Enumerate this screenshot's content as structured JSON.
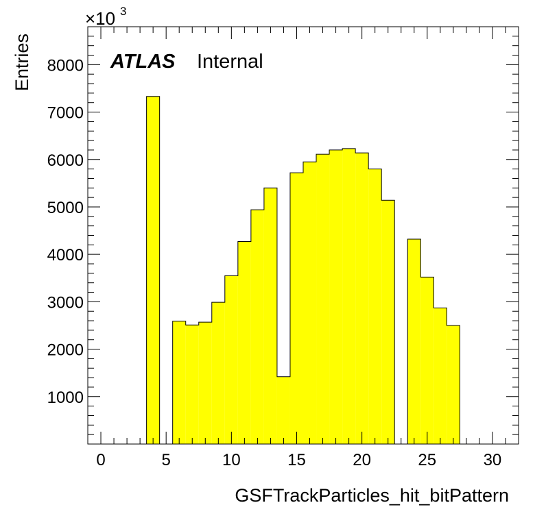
{
  "chart_data": {
    "type": "bar",
    "subtype": "histogram",
    "xlabel": "GSFTrackParticles_hit_bitPattern",
    "ylabel": "Entries",
    "y_multiplier_label": "×10",
    "y_multiplier_exponent": "3",
    "xlim": [
      -1,
      32
    ],
    "ylim": [
      0,
      8800
    ],
    "bin_width": 1,
    "x_ticks": [
      0,
      5,
      10,
      15,
      20,
      25,
      30
    ],
    "x_tick_labels": [
      "0",
      "5",
      "10",
      "15",
      "20",
      "25",
      "30"
    ],
    "y_ticks": [
      1000,
      2000,
      3000,
      4000,
      5000,
      6000,
      7000,
      8000
    ],
    "y_tick_labels": [
      "1000",
      "2000",
      "3000",
      "4000",
      "5000",
      "6000",
      "7000",
      "8000"
    ],
    "bin_low_edges": [
      -0.5,
      0.5,
      1.5,
      2.5,
      3.5,
      4.5,
      5.5,
      6.5,
      7.5,
      8.5,
      9.5,
      10.5,
      11.5,
      12.5,
      13.5,
      14.5,
      15.5,
      16.5,
      17.5,
      18.5,
      19.5,
      20.5,
      21.5,
      22.5,
      23.5,
      24.5,
      25.5,
      26.5,
      27.5,
      28.5,
      29.5,
      30.5
    ],
    "values": [
      0,
      0,
      0,
      0,
      7330,
      0,
      2590,
      2510,
      2570,
      2990,
      3550,
      4270,
      4940,
      5400,
      1420,
      5720,
      5950,
      6110,
      6200,
      6230,
      6140,
      5800,
      5140,
      0,
      4320,
      3520,
      2870,
      2500,
      0,
      0,
      0,
      0
    ],
    "fill_color": "#ffff00",
    "line_color": "#000000",
    "grid": false,
    "legend": null
  },
  "label": {
    "atlas": "ATLAS",
    "status": "Internal"
  }
}
